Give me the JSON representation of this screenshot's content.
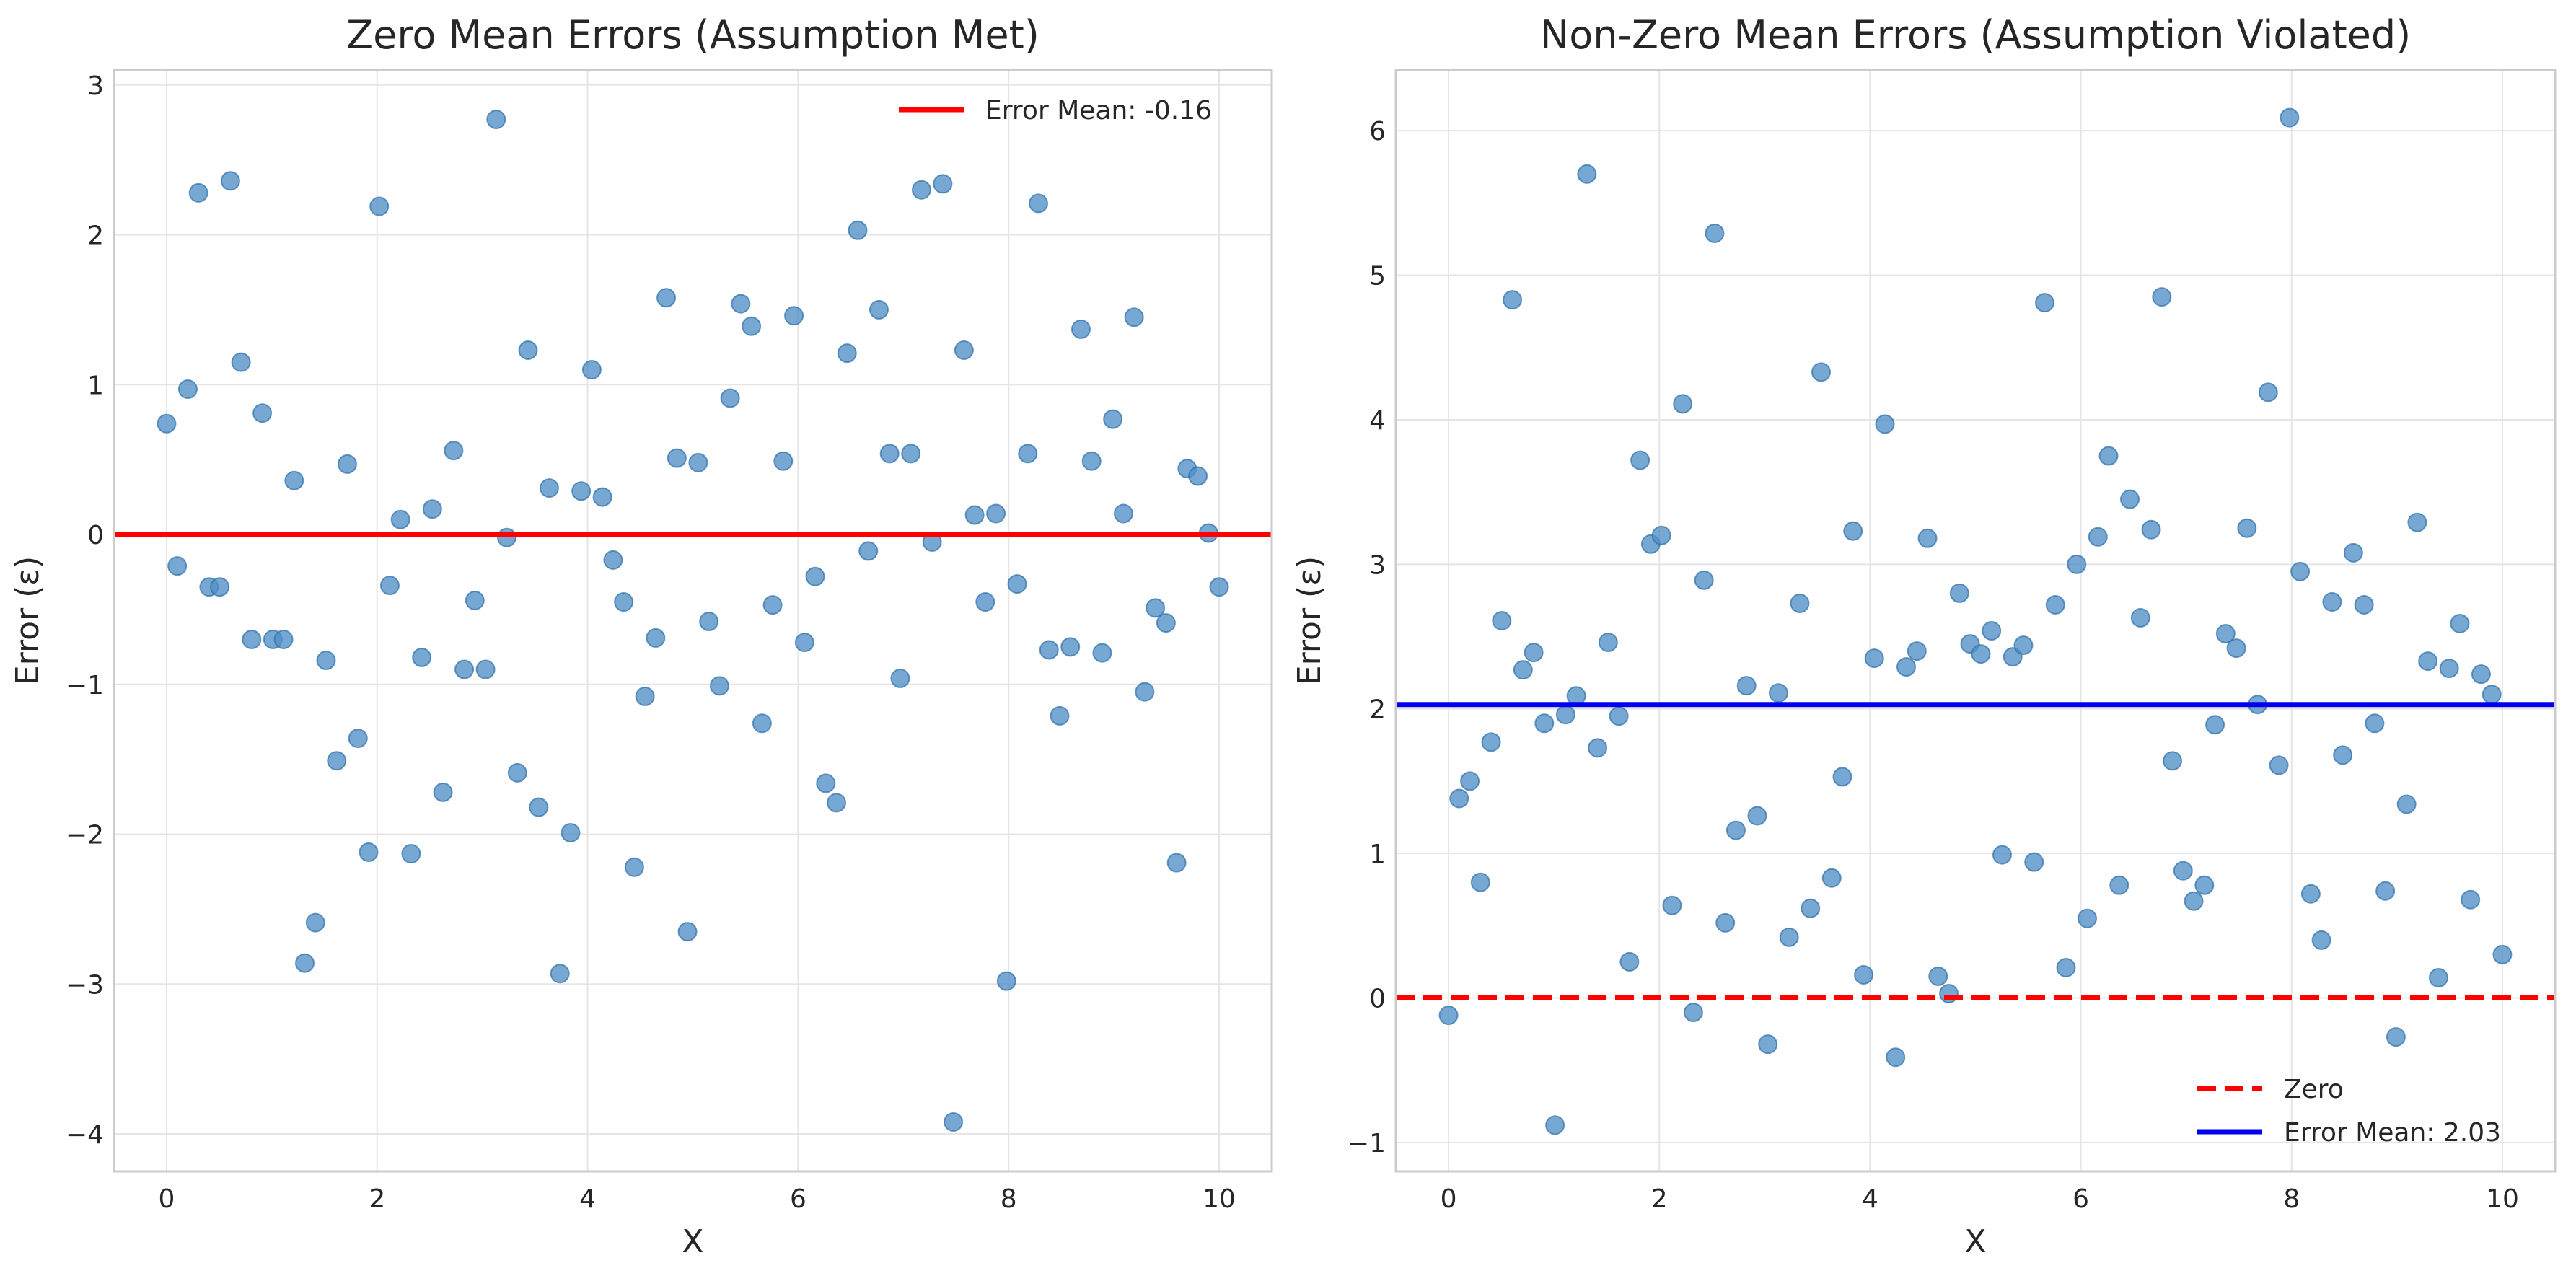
{
  "chart_data": [
    {
      "type": "scatter",
      "title": "Zero Mean Errors (Assumption Met)",
      "xlabel": "X",
      "ylabel": "Error (ε)",
      "xlim": [
        -0.5,
        10.5
      ],
      "ylim": [
        -4.25,
        3.1
      ],
      "xticks": [
        0,
        2,
        4,
        6,
        8,
        10
      ],
      "yticks": [
        -4,
        -3,
        -2,
        -1,
        0,
        1,
        2,
        3
      ],
      "grid": true,
      "legend_position": "top-right",
      "point_color": "#4f90c6",
      "points": {
        "x": [
          0,
          0.101,
          0.202,
          0.303,
          0.404,
          0.505,
          0.606,
          0.707,
          0.808,
          0.909,
          1.01,
          1.111,
          1.212,
          1.313,
          1.414,
          1.515,
          1.616,
          1.717,
          1.818,
          1.919,
          2.02,
          2.121,
          2.222,
          2.323,
          2.424,
          2.525,
          2.626,
          2.727,
          2.828,
          2.929,
          3.03,
          3.131,
          3.232,
          3.333,
          3.434,
          3.535,
          3.636,
          3.737,
          3.838,
          3.939,
          4.04,
          4.141,
          4.242,
          4.343,
          4.444,
          4.545,
          4.646,
          4.747,
          4.848,
          4.949,
          5.051,
          5.152,
          5.253,
          5.354,
          5.455,
          5.556,
          5.657,
          5.758,
          5.859,
          5.96,
          6.061,
          6.162,
          6.263,
          6.364,
          6.465,
          6.566,
          6.667,
          6.768,
          6.869,
          6.97,
          7.071,
          7.172,
          7.273,
          7.374,
          7.475,
          7.576,
          7.677,
          7.778,
          7.879,
          7.98,
          8.081,
          8.182,
          8.283,
          8.384,
          8.485,
          8.586,
          8.687,
          8.788,
          8.889,
          8.99,
          9.091,
          9.192,
          9.293,
          9.394,
          9.495,
          9.596,
          9.697,
          9.798,
          9.899,
          10
        ],
        "y": [
          0.74,
          -0.21,
          0.97,
          2.28,
          -0.35,
          -0.35,
          2.36,
          1.15,
          -0.7,
          0.81,
          -0.7,
          -0.7,
          0.36,
          -2.86,
          -2.59,
          -0.84,
          -1.51,
          0.47,
          -1.36,
          -2.12,
          2.19,
          -0.34,
          0.1,
          -2.13,
          -0.82,
          0.17,
          -1.72,
          0.56,
          -0.9,
          -0.44,
          -0.9,
          2.77,
          -0.02,
          -1.59,
          1.23,
          -1.82,
          0.31,
          -2.93,
          -1.99,
          0.29,
          1.1,
          0.25,
          -0.17,
          -0.45,
          -2.22,
          -1.08,
          -0.69,
          1.58,
          0.51,
          -2.65,
          0.48,
          -0.58,
          -1.01,
          0.91,
          1.54,
          1.39,
          -1.26,
          -0.47,
          0.49,
          1.46,
          -0.72,
          -0.28,
          -1.66,
          -1.79,
          1.21,
          2.03,
          -0.11,
          1.5,
          0.54,
          -0.96,
          0.54,
          2.3,
          -0.05,
          2.34,
          -3.92,
          1.23,
          0.13,
          -0.45,
          0.14,
          -2.98,
          -0.33,
          0.54,
          2.21,
          -0.77,
          -1.21,
          -0.75,
          1.37,
          0.49,
          -0.79,
          0.77,
          0.14,
          1.45,
          -1.05,
          -0.49,
          -0.59,
          -2.19,
          0.44,
          0.39,
          0.01,
          -0.35
        ]
      },
      "lines": [
        {
          "name": "Error Mean: -0.16",
          "y": 0,
          "color": "#ff0000",
          "style": "solid",
          "in_legend": true
        }
      ]
    },
    {
      "type": "scatter",
      "title": "Non-Zero Mean Errors (Assumption Violated)",
      "xlabel": "X",
      "ylabel": "Error (ε)",
      "xlim": [
        -0.5,
        10.5
      ],
      "ylim": [
        -1.2,
        6.42
      ],
      "xticks": [
        0,
        2,
        4,
        6,
        8,
        10
      ],
      "yticks": [
        -1,
        0,
        1,
        2,
        3,
        4,
        5,
        6
      ],
      "grid": true,
      "legend_position": "bottom-right",
      "point_color": "#4f90c6",
      "points": {
        "x": [
          0,
          0.101,
          0.202,
          0.303,
          0.404,
          0.505,
          0.606,
          0.707,
          0.808,
          0.909,
          1.01,
          1.111,
          1.212,
          1.313,
          1.414,
          1.515,
          1.616,
          1.717,
          1.818,
          1.919,
          2.02,
          2.121,
          2.222,
          2.323,
          2.424,
          2.525,
          2.626,
          2.727,
          2.828,
          2.929,
          3.03,
          3.131,
          3.232,
          3.333,
          3.434,
          3.535,
          3.636,
          3.737,
          3.838,
          3.939,
          4.04,
          4.141,
          4.242,
          4.343,
          4.444,
          4.545,
          4.646,
          4.747,
          4.848,
          4.949,
          5.051,
          5.152,
          5.253,
          5.354,
          5.455,
          5.556,
          5.657,
          5.758,
          5.859,
          5.96,
          6.061,
          6.162,
          6.263,
          6.364,
          6.465,
          6.566,
          6.667,
          6.768,
          6.869,
          6.97,
          7.071,
          7.172,
          7.273,
          7.374,
          7.475,
          7.576,
          7.677,
          7.778,
          7.879,
          7.98,
          8.081,
          8.182,
          8.283,
          8.384,
          8.485,
          8.586,
          8.687,
          8.788,
          8.889,
          8.99,
          9.091,
          9.192,
          9.293,
          9.394,
          9.495,
          9.596,
          9.697,
          9.798,
          9.899,
          10
        ],
        "y": [
          -0.12,
          1.38,
          1.5,
          0.8,
          1.77,
          2.61,
          4.83,
          2.27,
          2.39,
          1.9,
          -0.88,
          1.96,
          2.09,
          5.7,
          1.73,
          2.46,
          1.95,
          0.25,
          3.72,
          3.14,
          3.2,
          0.64,
          4.11,
          -0.1,
          2.89,
          5.29,
          0.52,
          1.16,
          2.16,
          1.26,
          -0.32,
          2.11,
          0.42,
          2.73,
          0.62,
          4.33,
          0.83,
          1.53,
          3.23,
          0.16,
          2.35,
          3.97,
          -0.41,
          2.29,
          2.4,
          3.18,
          0.15,
          0.03,
          2.8,
          2.45,
          2.38,
          2.54,
          0.99,
          2.36,
          2.44,
          0.94,
          4.81,
          2.72,
          0.21,
          3.0,
          0.55,
          3.19,
          3.75,
          0.78,
          3.45,
          2.63,
          3.24,
          4.85,
          1.64,
          0.88,
          0.67,
          0.78,
          1.89,
          2.52,
          2.42,
          3.25,
          2.03,
          4.19,
          1.61,
          6.09,
          2.95,
          0.72,
          0.4,
          2.74,
          1.68,
          3.08,
          2.72,
          1.9,
          0.74,
          -0.27,
          1.34,
          3.29,
          2.33,
          0.14,
          2.28,
          2.59,
          0.68,
          2.24,
          2.1,
          0.3
        ]
      },
      "lines": [
        {
          "name": "Zero",
          "y": 0,
          "color": "#ff0000",
          "style": "dashed",
          "in_legend": true
        },
        {
          "name": "Error Mean: 2.03",
          "y": 2.03,
          "color": "#0000ee",
          "style": "solid",
          "in_legend": true
        }
      ]
    }
  ]
}
